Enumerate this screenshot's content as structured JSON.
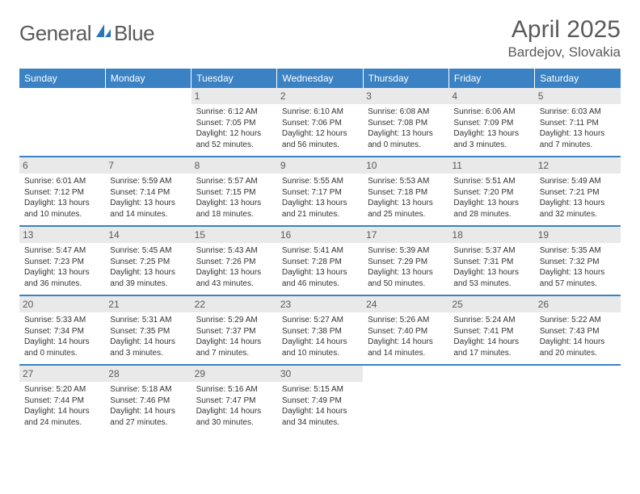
{
  "brand": {
    "part1": "General",
    "part2": "Blue"
  },
  "title": "April 2025",
  "location": "Bardejov, Slovakia",
  "colors": {
    "header_bg": "#3a82c4",
    "header_text": "#ffffff",
    "daynum_bg": "#e9e9e9",
    "text_gray": "#5a5a5a",
    "body_text": "#333333",
    "rule": "#3a82c4",
    "brand_blue": "#2975b9"
  },
  "typography": {
    "title_fontsize": 30,
    "location_fontsize": 17,
    "dayhead_fontsize": 12,
    "daynum_fontsize": 12,
    "cell_fontsize": 10
  },
  "day_names": [
    "Sunday",
    "Monday",
    "Tuesday",
    "Wednesday",
    "Thursday",
    "Friday",
    "Saturday"
  ],
  "weeks": [
    [
      null,
      null,
      {
        "n": "1",
        "sr": "Sunrise: 6:12 AM",
        "ss": "Sunset: 7:05 PM",
        "dl": "Daylight: 12 hours and 52 minutes."
      },
      {
        "n": "2",
        "sr": "Sunrise: 6:10 AM",
        "ss": "Sunset: 7:06 PM",
        "dl": "Daylight: 12 hours and 56 minutes."
      },
      {
        "n": "3",
        "sr": "Sunrise: 6:08 AM",
        "ss": "Sunset: 7:08 PM",
        "dl": "Daylight: 13 hours and 0 minutes."
      },
      {
        "n": "4",
        "sr": "Sunrise: 6:06 AM",
        "ss": "Sunset: 7:09 PM",
        "dl": "Daylight: 13 hours and 3 minutes."
      },
      {
        "n": "5",
        "sr": "Sunrise: 6:03 AM",
        "ss": "Sunset: 7:11 PM",
        "dl": "Daylight: 13 hours and 7 minutes."
      }
    ],
    [
      {
        "n": "6",
        "sr": "Sunrise: 6:01 AM",
        "ss": "Sunset: 7:12 PM",
        "dl": "Daylight: 13 hours and 10 minutes."
      },
      {
        "n": "7",
        "sr": "Sunrise: 5:59 AM",
        "ss": "Sunset: 7:14 PM",
        "dl": "Daylight: 13 hours and 14 minutes."
      },
      {
        "n": "8",
        "sr": "Sunrise: 5:57 AM",
        "ss": "Sunset: 7:15 PM",
        "dl": "Daylight: 13 hours and 18 minutes."
      },
      {
        "n": "9",
        "sr": "Sunrise: 5:55 AM",
        "ss": "Sunset: 7:17 PM",
        "dl": "Daylight: 13 hours and 21 minutes."
      },
      {
        "n": "10",
        "sr": "Sunrise: 5:53 AM",
        "ss": "Sunset: 7:18 PM",
        "dl": "Daylight: 13 hours and 25 minutes."
      },
      {
        "n": "11",
        "sr": "Sunrise: 5:51 AM",
        "ss": "Sunset: 7:20 PM",
        "dl": "Daylight: 13 hours and 28 minutes."
      },
      {
        "n": "12",
        "sr": "Sunrise: 5:49 AM",
        "ss": "Sunset: 7:21 PM",
        "dl": "Daylight: 13 hours and 32 minutes."
      }
    ],
    [
      {
        "n": "13",
        "sr": "Sunrise: 5:47 AM",
        "ss": "Sunset: 7:23 PM",
        "dl": "Daylight: 13 hours and 36 minutes."
      },
      {
        "n": "14",
        "sr": "Sunrise: 5:45 AM",
        "ss": "Sunset: 7:25 PM",
        "dl": "Daylight: 13 hours and 39 minutes."
      },
      {
        "n": "15",
        "sr": "Sunrise: 5:43 AM",
        "ss": "Sunset: 7:26 PM",
        "dl": "Daylight: 13 hours and 43 minutes."
      },
      {
        "n": "16",
        "sr": "Sunrise: 5:41 AM",
        "ss": "Sunset: 7:28 PM",
        "dl": "Daylight: 13 hours and 46 minutes."
      },
      {
        "n": "17",
        "sr": "Sunrise: 5:39 AM",
        "ss": "Sunset: 7:29 PM",
        "dl": "Daylight: 13 hours and 50 minutes."
      },
      {
        "n": "18",
        "sr": "Sunrise: 5:37 AM",
        "ss": "Sunset: 7:31 PM",
        "dl": "Daylight: 13 hours and 53 minutes."
      },
      {
        "n": "19",
        "sr": "Sunrise: 5:35 AM",
        "ss": "Sunset: 7:32 PM",
        "dl": "Daylight: 13 hours and 57 minutes."
      }
    ],
    [
      {
        "n": "20",
        "sr": "Sunrise: 5:33 AM",
        "ss": "Sunset: 7:34 PM",
        "dl": "Daylight: 14 hours and 0 minutes."
      },
      {
        "n": "21",
        "sr": "Sunrise: 5:31 AM",
        "ss": "Sunset: 7:35 PM",
        "dl": "Daylight: 14 hours and 3 minutes."
      },
      {
        "n": "22",
        "sr": "Sunrise: 5:29 AM",
        "ss": "Sunset: 7:37 PM",
        "dl": "Daylight: 14 hours and 7 minutes."
      },
      {
        "n": "23",
        "sr": "Sunrise: 5:27 AM",
        "ss": "Sunset: 7:38 PM",
        "dl": "Daylight: 14 hours and 10 minutes."
      },
      {
        "n": "24",
        "sr": "Sunrise: 5:26 AM",
        "ss": "Sunset: 7:40 PM",
        "dl": "Daylight: 14 hours and 14 minutes."
      },
      {
        "n": "25",
        "sr": "Sunrise: 5:24 AM",
        "ss": "Sunset: 7:41 PM",
        "dl": "Daylight: 14 hours and 17 minutes."
      },
      {
        "n": "26",
        "sr": "Sunrise: 5:22 AM",
        "ss": "Sunset: 7:43 PM",
        "dl": "Daylight: 14 hours and 20 minutes."
      }
    ],
    [
      {
        "n": "27",
        "sr": "Sunrise: 5:20 AM",
        "ss": "Sunset: 7:44 PM",
        "dl": "Daylight: 14 hours and 24 minutes."
      },
      {
        "n": "28",
        "sr": "Sunrise: 5:18 AM",
        "ss": "Sunset: 7:46 PM",
        "dl": "Daylight: 14 hours and 27 minutes."
      },
      {
        "n": "29",
        "sr": "Sunrise: 5:16 AM",
        "ss": "Sunset: 7:47 PM",
        "dl": "Daylight: 14 hours and 30 minutes."
      },
      {
        "n": "30",
        "sr": "Sunrise: 5:15 AM",
        "ss": "Sunset: 7:49 PM",
        "dl": "Daylight: 14 hours and 34 minutes."
      },
      null,
      null,
      null
    ]
  ]
}
